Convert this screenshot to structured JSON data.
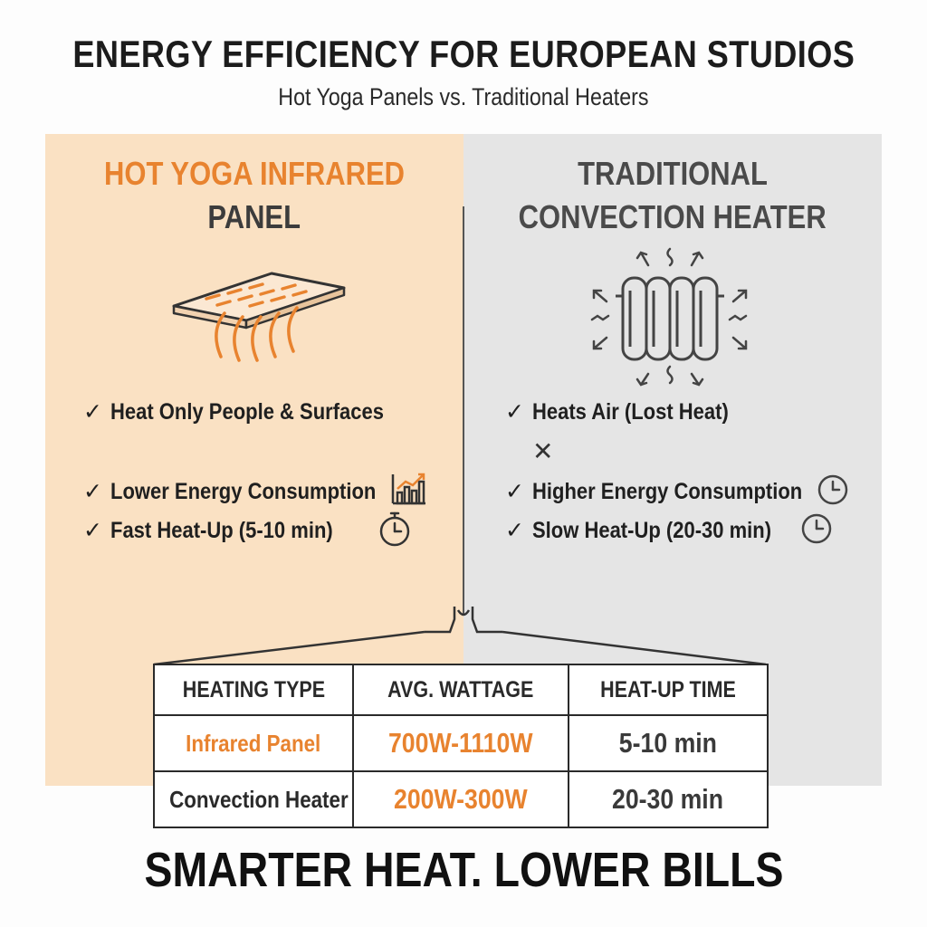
{
  "header": {
    "title": "ENERGY EFFICIENCY FOR EUROPEAN STUDIOS",
    "subtitle": "Hot Yoga Panels vs. Traditional Heaters"
  },
  "left": {
    "heading_line1": "HOT YOGA INFRARED",
    "heading_line2": "PANEL",
    "icon": "infrared-panel-icon",
    "features": [
      {
        "check": "✓",
        "text": "Heat Only People & Surfaces"
      },
      {
        "check": "✓",
        "text": "Lower Energy Consumption",
        "icon": "bar-chart-icon"
      },
      {
        "check": "✓",
        "text": "Fast Heat-Up (5-10 min)",
        "icon": "stopwatch-icon"
      }
    ]
  },
  "right": {
    "heading_line1": "TRADITIONAL",
    "heading_line2": "CONVECTION HEATER",
    "icon": "radiator-icon",
    "features": [
      {
        "check": "✓",
        "text": "Heats Air (Lost Heat)"
      },
      {
        "check": "✓",
        "text": "Higher Energy Consumption",
        "icon": "clock-icon"
      },
      {
        "check": "✓",
        "text": "Slow Heat-Up (20-30 min)",
        "icon": "clock-icon"
      }
    ],
    "cross": "✕"
  },
  "table": {
    "headers": [
      "HEATING TYPE",
      "AVG. WATTAGE",
      "HEAT-UP TIME"
    ],
    "rows": [
      {
        "type": "Infrared Panel",
        "wattage": "700W-1110W",
        "time": "5-10 min"
      },
      {
        "type": "Convection Heater",
        "wattage": "200W-300W",
        "time": "20-30 min"
      }
    ]
  },
  "footer": {
    "tagline": "SMARTER HEAT. LOWER BILLS"
  },
  "colors": {
    "accent_orange": "#e8832f",
    "left_bg": "#fae1c3",
    "right_bg": "#e5e5e5",
    "text_dark": "#1f1f1f"
  }
}
